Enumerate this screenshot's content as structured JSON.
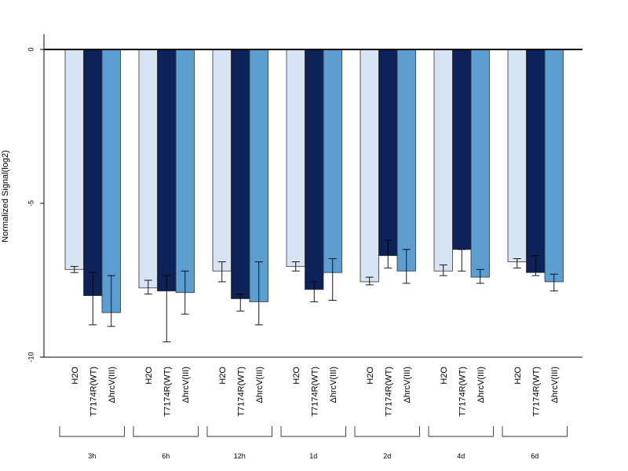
{
  "chart_data": {
    "type": "bar",
    "ylabel": "Normalized Signal(log2)",
    "ylim": [
      -10,
      0.5
    ],
    "yticks": [
      0,
      -5,
      -10
    ],
    "groups": [
      "3h",
      "6h",
      "12h",
      "1d",
      "2d",
      "4d",
      "6d"
    ],
    "series": [
      {
        "name": "H2O",
        "color": "#d6e4f3",
        "values": [
          -7.15,
          -7.75,
          -7.2,
          -7.05,
          -7.55,
          -7.2,
          -6.9
        ],
        "err_low": [
          -7.25,
          -7.95,
          -7.55,
          -7.2,
          -7.65,
          -7.35,
          -7.1
        ],
        "err_high": [
          -7.05,
          -7.5,
          -6.9,
          -6.9,
          -7.4,
          -7.0,
          -6.8
        ]
      },
      {
        "name": "T7174R(WT)",
        "color": "#0c2258",
        "values": [
          -8.0,
          -7.85,
          -8.1,
          -7.8,
          -6.7,
          -6.5,
          -7.25
        ],
        "err_low": [
          -8.95,
          -9.5,
          -8.5,
          -8.2,
          -7.1,
          -7.2,
          -7.35
        ],
        "err_high": [
          -7.25,
          -7.35,
          -7.95,
          -7.55,
          -6.2,
          -6.5,
          -6.7
        ]
      },
      {
        "name": "ΔhrcV(III)",
        "color": "#5b9ecf",
        "values": [
          -8.55,
          -7.9,
          -8.2,
          -7.25,
          -7.2,
          -7.4,
          -7.55
        ],
        "err_low": [
          -9.0,
          -8.6,
          -8.95,
          -8.15,
          -7.6,
          -7.6,
          -7.85
        ],
        "err_high": [
          -7.35,
          -7.2,
          -6.9,
          -6.8,
          -6.5,
          -7.15,
          -7.3
        ]
      }
    ]
  }
}
